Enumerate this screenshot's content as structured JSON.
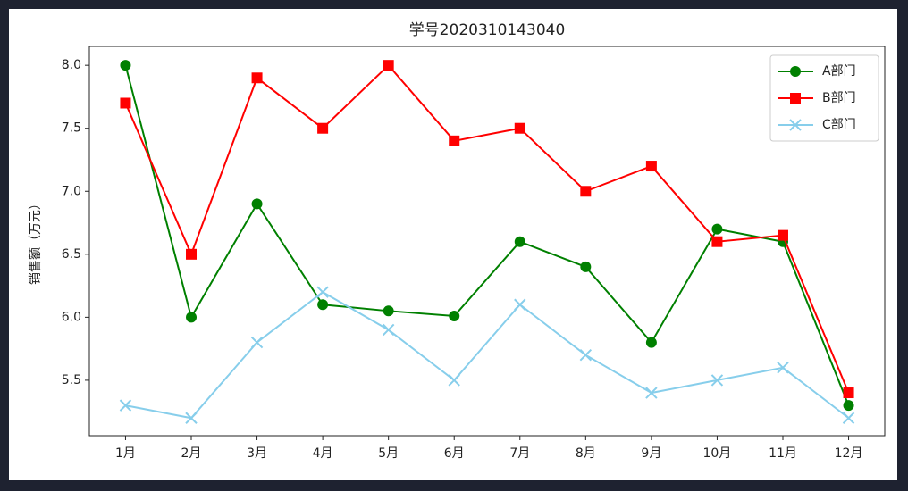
{
  "chart_data": {
    "type": "line",
    "title": "学号2020310143040",
    "y_label": "销售额（万元）",
    "categories": [
      "1月",
      "2月",
      "3月",
      "4月",
      "5月",
      "6月",
      "7月",
      "8月",
      "9月",
      "10月",
      "11月",
      "12月"
    ],
    "series": [
      {
        "name": "A部门",
        "color": "green",
        "marker": "circle",
        "values": [
          8.0,
          6.0,
          6.9,
          6.1,
          6.05,
          6.01,
          6.6,
          6.4,
          5.8,
          6.7,
          6.6,
          5.3
        ]
      },
      {
        "name": "B部门",
        "color": "red",
        "marker": "square",
        "values": [
          7.7,
          6.5,
          7.9,
          7.5,
          8.0,
          7.4,
          7.5,
          7.0,
          7.2,
          6.6,
          6.65,
          5.4
        ]
      },
      {
        "name": "C部门",
        "color": "skyblue",
        "marker": "x",
        "values": [
          5.3,
          5.2,
          5.8,
          6.2,
          5.9,
          5.5,
          6.1,
          5.7,
          5.4,
          5.5,
          5.6,
          5.2
        ]
      }
    ],
    "ylim": [
      5.06,
      8.15
    ],
    "yticks": [
      {
        "value": 5.5,
        "label": "5.5"
      },
      {
        "value": 6,
        "label": "6.0"
      },
      6.5,
      {
        "value": 7,
        "label": "7.0"
      },
      7.5,
      {
        "value": 8,
        "label": "8.0"
      }
    ],
    "legend": "upper right",
    "grid": false
  }
}
